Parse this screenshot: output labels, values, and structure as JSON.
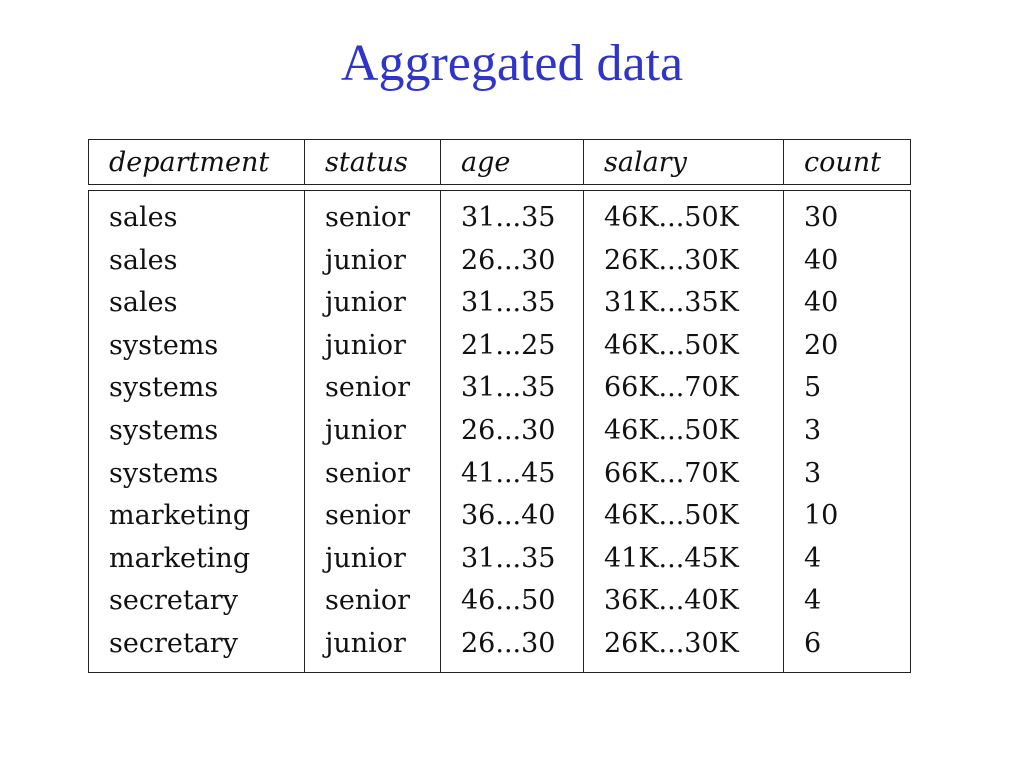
{
  "title": "Aggregated data",
  "table": {
    "headers": [
      "department",
      "status",
      "age",
      "salary",
      "count"
    ],
    "rows": [
      [
        "sales",
        "senior",
        "31...35",
        "46K...50K",
        "30"
      ],
      [
        "sales",
        "junior",
        "26...30",
        "26K...30K",
        "40"
      ],
      [
        "sales",
        "junior",
        "31...35",
        "31K...35K",
        "40"
      ],
      [
        "systems",
        "junior",
        "21...25",
        "46K...50K",
        "20"
      ],
      [
        "systems",
        "senior",
        "31...35",
        "66K...70K",
        "5"
      ],
      [
        "systems",
        "junior",
        "26...30",
        "46K...50K",
        "3"
      ],
      [
        "systems",
        "senior",
        "41...45",
        "66K...70K",
        "3"
      ],
      [
        "marketing",
        "senior",
        "36...40",
        "46K...50K",
        "10"
      ],
      [
        "marketing",
        "junior",
        "31...35",
        "41K...45K",
        "4"
      ],
      [
        "secretary",
        "senior",
        "46...50",
        "36K...40K",
        "4"
      ],
      [
        "secretary",
        "junior",
        "26...30",
        "26K...30K",
        "6"
      ]
    ]
  }
}
